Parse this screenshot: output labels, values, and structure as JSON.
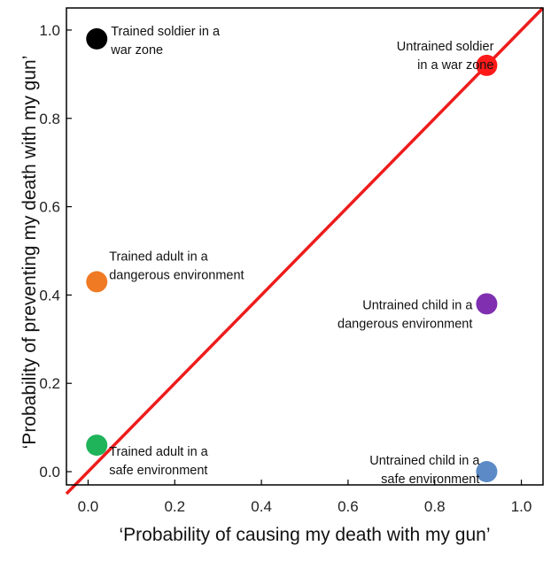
{
  "chart_data": {
    "type": "scatter",
    "xlabel": "‘Probability of causing my death with my gun’",
    "ylabel": "‘Probability of preventing my death with my gun’",
    "xlim": [
      -0.05,
      1.05
    ],
    "ylim": [
      -0.03,
      1.05
    ],
    "xticks": [
      "0.0",
      "0.2",
      "0.4",
      "0.6",
      "0.8",
      "1.0"
    ],
    "yticks": [
      "0.0",
      "0.2",
      "0.4",
      "0.6",
      "0.8",
      "1.0"
    ],
    "grid": false,
    "reference_line": {
      "from": [
        -0.05,
        -0.05
      ],
      "to": [
        1.05,
        1.05
      ],
      "color": "#ee1c1c"
    },
    "points": [
      {
        "x": 0.02,
        "y": 0.98,
        "color": "#000000",
        "label": [
          "Trained soldier in a",
          "war zone"
        ]
      },
      {
        "x": 0.92,
        "y": 0.92,
        "color": "#ff1a1a",
        "label": [
          "Untrained soldier",
          "in a war zone"
        ]
      },
      {
        "x": 0.02,
        "y": 0.43,
        "color": "#ef7a23",
        "label": [
          "Trained adult in a",
          "dangerous environment"
        ]
      },
      {
        "x": 0.92,
        "y": 0.38,
        "color": "#7f2fb0",
        "label": [
          "Untrained child in a",
          "dangerous environment"
        ]
      },
      {
        "x": 0.02,
        "y": 0.06,
        "color": "#1fb35a",
        "label": [
          "Trained adult in a",
          "safe environment"
        ]
      },
      {
        "x": 0.92,
        "y": 0.0,
        "color": "#5b8ac6",
        "label": [
          "Untrained child in a",
          "safe environment"
        ]
      }
    ]
  }
}
